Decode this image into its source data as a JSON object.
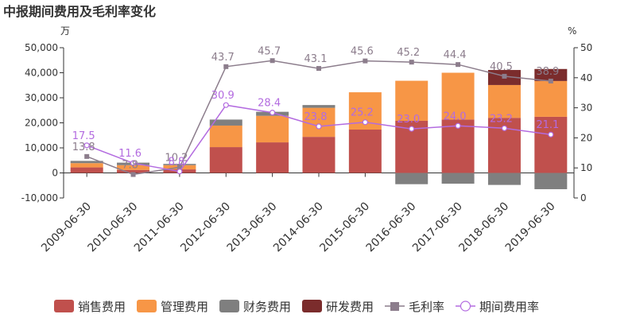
{
  "chart_data": {
    "type": "bar",
    "title": "中报期间费用及毛利率变化",
    "left_unit": "万",
    "right_unit": "%",
    "categories": [
      "2009-06-30",
      "2010-06-30",
      "2011-06-30",
      "2012-06-30",
      "2013-06-30",
      "2014-06-30",
      "2015-06-30",
      "2016-06-30",
      "2017-06-30",
      "2018-06-30",
      "2019-06-30"
    ],
    "ylim_left": [
      -10000,
      50000
    ],
    "yticks_left": [
      -10000,
      0,
      10000,
      20000,
      30000,
      40000,
      50000
    ],
    "yticks_left_labels": [
      "-10,000",
      "0",
      "10,000",
      "20,000",
      "30,000",
      "40,000",
      "50,000"
    ],
    "ylim_right": [
      0,
      50
    ],
    "yticks_right": [
      0,
      10,
      20,
      30,
      40,
      50
    ],
    "bar_series": [
      {
        "name": "销售费用",
        "color": "#c0504d",
        "values": [
          2200,
          1200,
          1400,
          10300,
          12200,
          14400,
          17300,
          20800,
          21300,
          22000,
          22400
        ]
      },
      {
        "name": "管理费用",
        "color": "#f79646",
        "values": [
          1700,
          1900,
          1700,
          8600,
          10600,
          11600,
          14900,
          16000,
          18700,
          13100,
          14300
        ]
      },
      {
        "name": "财务费用",
        "color": "#7f7f7f",
        "values": [
          900,
          1000,
          500,
          2400,
          1600,
          1100,
          0,
          -4500,
          -4300,
          -4800,
          -6500
        ]
      },
      {
        "name": "研发费用",
        "color": "#7b2c2c",
        "values": [
          0,
          0,
          0,
          0,
          0,
          0,
          0,
          0,
          0,
          6000,
          4800
        ]
      }
    ],
    "line_series": [
      {
        "name": "毛利率",
        "color": "#8c7d8c",
        "marker": "square",
        "values": [
          13.8,
          7.8,
          10.2,
          43.7,
          45.7,
          43.1,
          45.6,
          45.2,
          44.4,
          40.5,
          38.9
        ],
        "labels": [
          "13.8",
          "7.8",
          "10.2",
          "43.7",
          "45.7",
          "43.1",
          "45.6",
          "45.2",
          "44.4",
          "40.5",
          "38.9"
        ]
      },
      {
        "name": "期间费用率",
        "color": "#b36be0",
        "marker": "circle",
        "values": [
          17.5,
          11.6,
          8.8,
          30.9,
          28.4,
          23.8,
          25.2,
          23.0,
          24.0,
          23.2,
          21.1
        ],
        "labels": [
          "17.5",
          "11.6",
          "8.8",
          "30.9",
          "28.4",
          "23.8",
          "25.2",
          "23.0",
          "24.0",
          "23.2",
          "21.1"
        ]
      }
    ],
    "legend_position": "bottom",
    "grid": false
  }
}
